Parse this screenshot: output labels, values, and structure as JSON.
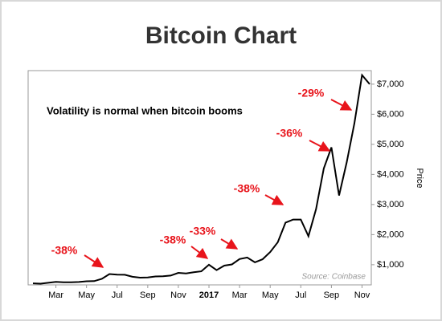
{
  "chart_data": {
    "type": "line",
    "title": "Bitcoin Chart",
    "subtitle": "Volatility is normal when bitcoin booms",
    "source": "Source: Coinbase",
    "y_label": "Price",
    "categories": [
      null,
      null,
      null,
      "Mar",
      null,
      null,
      null,
      "May",
      null,
      null,
      null,
      "Jul",
      null,
      null,
      null,
      "Sep",
      null,
      null,
      null,
      "Nov",
      null,
      null,
      null,
      "2017",
      null,
      null,
      null,
      "Mar",
      null,
      null,
      null,
      "May",
      null,
      null,
      null,
      "Jul",
      null,
      null,
      null,
      "Sep",
      null,
      null,
      null,
      "Nov",
      null
    ],
    "series": [
      {
        "name": "Price",
        "color": "#000000",
        "values": [
          380,
          370,
          400,
          430,
          415,
          415,
          425,
          450,
          455,
          530,
          690,
          670,
          665,
          600,
          570,
          575,
          610,
          615,
          640,
          730,
          710,
          750,
          780,
          1000,
          820,
          970,
          1010,
          1190,
          1240,
          1080,
          1180,
          1420,
          1750,
          2400,
          2500,
          2500,
          1950,
          2850,
          4200,
          4900,
          3300,
          4400,
          5700,
          7300,
          7000
        ]
      }
    ],
    "ylim": [
      330,
      7450
    ],
    "yticks": [
      {
        "value": 1000,
        "label": "$1,000"
      },
      {
        "value": 2000,
        "label": "$2,000"
      },
      {
        "value": 3000,
        "label": "$3,000"
      },
      {
        "value": 4000,
        "label": "$4,000"
      },
      {
        "value": 5000,
        "label": "$5,000"
      },
      {
        "value": 6000,
        "label": "$6,000"
      },
      {
        "value": 7000,
        "label": "$7,000"
      }
    ],
    "annotations": [
      "-38%",
      "-38%",
      "-33%",
      "-38%",
      "-36%",
      "-29%"
    ]
  }
}
